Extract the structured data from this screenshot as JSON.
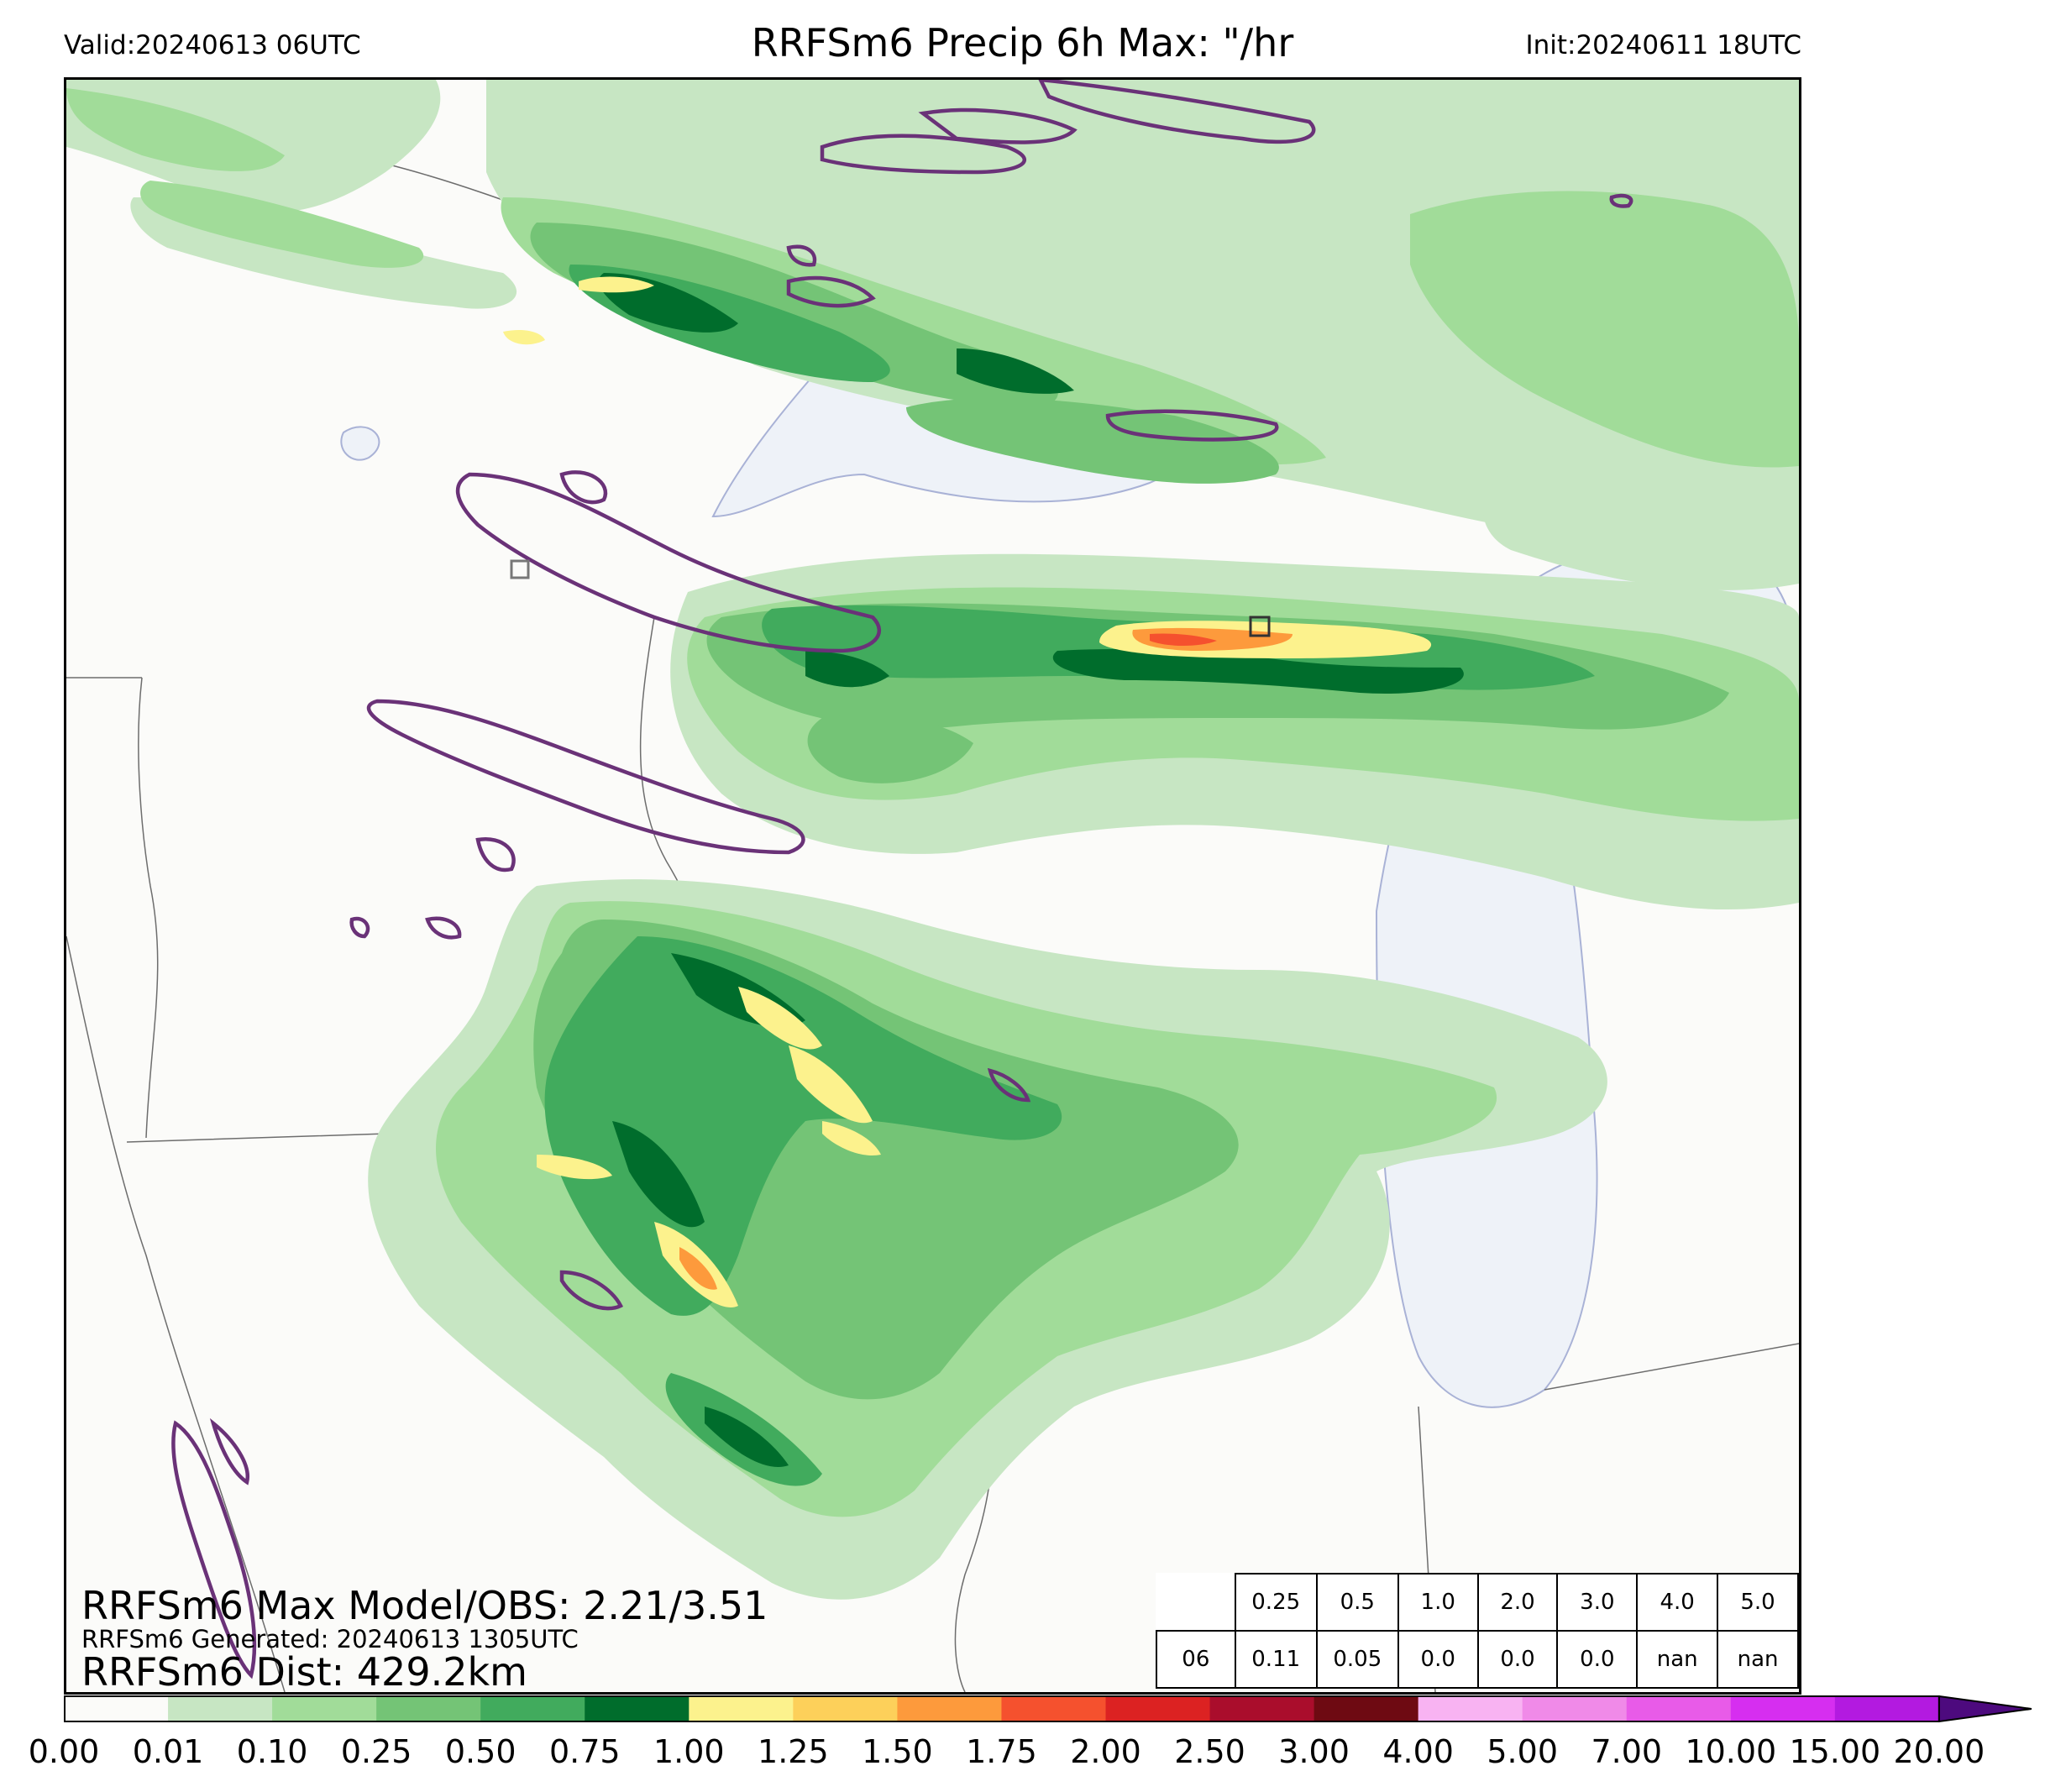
{
  "header": {
    "valid": "Valid:20240613 06UTC",
    "title": "RRFSm6 Precip 6h Max: \"/hr",
    "init": "Init:20240611 18UTC"
  },
  "info": {
    "max_line": "RRFSm6 Max Model/OBS: 2.21/3.51",
    "generated_line": "RRFSm6 Generated: 20240613 1305UTC",
    "dist_line": "RRFSm6 Dist: 429.2km"
  },
  "stats_table": {
    "thresholds": [
      "0.25",
      "0.5",
      "1.0",
      "2.0",
      "3.0",
      "4.0",
      "5.0"
    ],
    "row_label": "06",
    "values": [
      "0.11",
      "0.05",
      "0.0",
      "0.0",
      "0.0",
      "nan",
      "nan"
    ]
  },
  "colorbar": {
    "ticks": [
      "0.00",
      "0.01",
      "0.10",
      "0.25",
      "0.50",
      "0.75",
      "1.00",
      "1.25",
      "1.50",
      "1.75",
      "2.00",
      "2.50",
      "3.00",
      "4.00",
      "5.00",
      "7.00",
      "10.00",
      "15.00",
      "20.00"
    ],
    "colors": [
      "#fbfbf9",
      "#c7e6c3",
      "#a1dc99",
      "#74c476",
      "#41ab5d",
      "#006d2c",
      "#fcf28d",
      "#fdd05a",
      "#fd9a3c",
      "#f5512e",
      "#dc2222",
      "#aa0d2c",
      "#6e0a12",
      "#f8b3f2",
      "#f08ae8",
      "#e85be8",
      "#d62ef0",
      "#b31ae0",
      "#7a14c0"
    ],
    "extend_color": "#4d0a7e"
  },
  "map": {
    "legend_note": "",
    "lake_color": "#eef2f8",
    "obs_contour_color": "#6a3278"
  }
}
